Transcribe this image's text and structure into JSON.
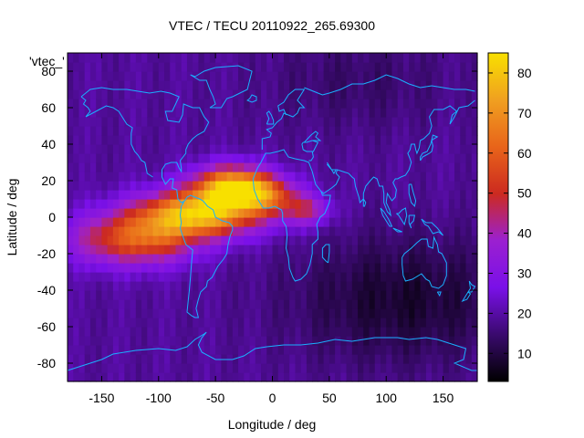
{
  "chart_data": {
    "type": "heatmap",
    "title": "VTEC / TECU 20110922_265.69300",
    "xlabel": "Longitude / deg",
    "ylabel": "Latitude / deg",
    "legend_title": "'vtec_'",
    "xlim": [
      -180,
      180
    ],
    "ylim": [
      -90,
      90
    ],
    "x_ticks": [
      -150,
      -100,
      -50,
      0,
      50,
      100,
      150
    ],
    "y_ticks": [
      -80,
      -60,
      -40,
      -20,
      0,
      20,
      40,
      60,
      80
    ],
    "colorbar_range": [
      3,
      85
    ],
    "colorbar_ticks": [
      10,
      20,
      30,
      40,
      50,
      60,
      70,
      80
    ],
    "colormap": [
      "#000000",
      "#3a0a6e",
      "#7a10e8",
      "#9b20d0",
      "#cc2a20",
      "#e8641a",
      "#f0a020",
      "#f8e000"
    ],
    "grid_resolution_deg": 5,
    "features": [
      {
        "desc": "equatorial_anomaly",
        "lon_center": -60,
        "lat_center": 0,
        "vtec_peak": 84
      },
      {
        "desc": "anomaly_crest_north",
        "lon_center": -30,
        "lat_center": 18,
        "vtec_peak": 80
      },
      {
        "desc": "anomaly_tail_africa",
        "lon_center": 30,
        "lat_center": 5,
        "vtec_peak": 50
      },
      {
        "desc": "night_side_low",
        "lon_center": 110,
        "lat_center": -50,
        "vtec_peak": 5
      }
    ]
  }
}
